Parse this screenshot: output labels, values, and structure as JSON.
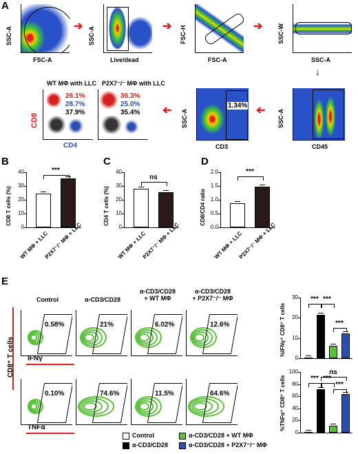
{
  "panels": {
    "A": "A",
    "B": "B",
    "C": "C",
    "D": "D",
    "E": "E"
  },
  "gating": {
    "p1": {
      "x": "FSC-A",
      "y": "SSC-A"
    },
    "p2": {
      "x": "Live/dead",
      "y": "SSC-A"
    },
    "p3": {
      "x": "FSC-A",
      "y": "FSC-H"
    },
    "p4": {
      "x": "SSC-A",
      "y": "SSC-W"
    },
    "p5": {
      "x": "CD45",
      "y": "SSC-A"
    },
    "p6": {
      "x": "CD3",
      "y": "SSC-A",
      "pct": "1.34%"
    },
    "wt": {
      "title": "WT MΦ with LLC",
      "y": "CD8",
      "x": "CD4",
      "v1": "26.1%",
      "v2": "28.7%",
      "v3": "37.9%"
    },
    "ko": {
      "title": "P2X7⁻/⁻ MΦ with LLC",
      "v1": "36.3%",
      "v2": "25.0%",
      "v3": "35.4%"
    }
  },
  "colors": {
    "red": "#d42020",
    "blue": "#2a4fb0",
    "black": "#000000",
    "green": "#5ac03a",
    "flow_blue": "#2a52c8"
  },
  "barB": {
    "ylabel": "CD8 T cells (%)",
    "yticks": [
      "40",
      "30",
      "20",
      "10",
      "0"
    ],
    "cats": [
      "WT MΦ\n+ LLC",
      "P2X7⁻/⁻ MΦ\n+ LLC"
    ],
    "sig": "***"
  },
  "barC": {
    "ylabel": "CD4 T cells (%)",
    "yticks": [
      "40",
      "30",
      "20",
      "10",
      "0"
    ],
    "cats": [
      "WT MΦ\n+ LLC",
      "P2X7⁻/⁻ MΦ\n+ LLC"
    ],
    "sig": "ns"
  },
  "barD": {
    "ylabel": "CD8/CD4 ratio",
    "yticks": [
      "2.0",
      "1.5",
      "1.0",
      "0.5",
      "0.0"
    ],
    "cats": [
      "WT MΦ\n+ LLC",
      "P2X7⁻/⁻ MΦ\n+ LLC"
    ],
    "sig": "***"
  },
  "E": {
    "titles": [
      "Control",
      "α-CD3/CD28",
      "α-CD3/CD28\n+ WT MΦ",
      "α-CD3/CD28\n+ P2X7⁻/⁻ MΦ"
    ],
    "ifng": [
      "0.58%",
      "21%",
      "6.02%",
      "12.6%"
    ],
    "tnfa": [
      "0.10%",
      "74.6%",
      "11.5%",
      "64.6%"
    ],
    "ylab": "CD8⁺ T cells",
    "ifng_lab": "IFNγ",
    "tnfa_lab": "TNFα",
    "bar1_ylabel": "%IFNγ⁺ CD8⁺ T cells",
    "bar1_ticks": [
      "30",
      "20",
      "10",
      "0"
    ],
    "bar2_ylabel": "%TNFα⁺ CD8⁺ T cells",
    "bar2_ticks": [
      "100",
      "80",
      "60",
      "40",
      "20",
      "0"
    ],
    "sig": "***",
    "ns": "ns",
    "legend": [
      "Control",
      "α-CD3/CD28",
      "α-CD3/CD28 + WT MΦ",
      "α-CD3/CD28 + P2X7⁻/⁻ MΦ"
    ]
  },
  "chart_data": [
    {
      "type": "bar",
      "ylabel": "CD8 T cells (%)",
      "categories": [
        "WT MΦ + LLC",
        "P2X7⁻/⁻ MΦ + LLC"
      ],
      "values": [
        24.5,
        35.5
      ],
      "ylim": [
        0,
        40
      ]
    },
    {
      "type": "bar",
      "ylabel": "CD4 T cells (%)",
      "categories": [
        "WT MΦ + LLC",
        "P2X7⁻/⁻ MΦ + LLC"
      ],
      "values": [
        28,
        25.5
      ],
      "ylim": [
        0,
        40
      ]
    },
    {
      "type": "bar",
      "ylabel": "CD8/CD4 ratio",
      "categories": [
        "WT MΦ + LLC",
        "P2X7⁻/⁻ MΦ + LLC"
      ],
      "values": [
        0.88,
        1.48
      ],
      "ylim": [
        0,
        2.0
      ]
    },
    {
      "type": "bar",
      "ylabel": "%IFNγ⁺ CD8⁺ T cells",
      "categories": [
        "Control",
        "α-CD3/CD28",
        "α-CD3/CD28 + WT MΦ",
        "α-CD3/CD28 + P2X7⁻/⁻ MΦ"
      ],
      "values": [
        0.5,
        21.5,
        6.3,
        12.3
      ],
      "ylim": [
        0,
        30
      ]
    },
    {
      "type": "bar",
      "ylabel": "%TNFα⁺ CD8⁺ T cells",
      "categories": [
        "Control",
        "α-CD3/CD28",
        "α-CD3/CD28 + WT MΦ",
        "α-CD3/CD28 + P2X7⁻/⁻ MΦ"
      ],
      "values": [
        0.3,
        71.5,
        11,
        63.5
      ],
      "ylim": [
        0,
        100
      ]
    }
  ]
}
